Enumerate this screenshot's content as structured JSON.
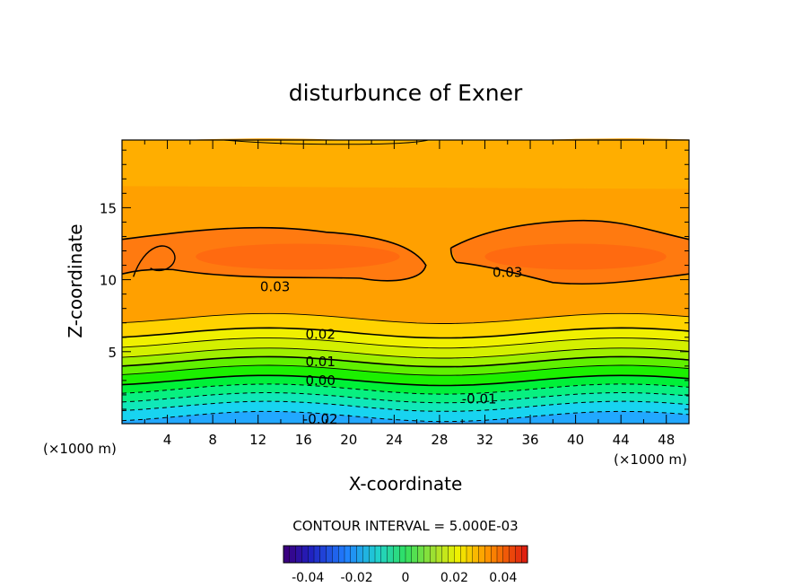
{
  "chart_data": {
    "type": "heatmap",
    "title": "disturbunce of Exner",
    "xlabel": "X-coordinate",
    "ylabel": "Z-coordinate",
    "x_unit_left": "(×1000 m)",
    "x_unit_right": "(×1000 m)",
    "xlim": [
      0,
      50
    ],
    "ylim": [
      0,
      19.7
    ],
    "x_ticks": [
      "4",
      "8",
      "12",
      "16",
      "20",
      "24",
      "28",
      "32",
      "36",
      "40",
      "44",
      "48"
    ],
    "y_ticks": [
      "5",
      "10",
      "15"
    ],
    "contour_interval_text": "CONTOUR INTERVAL = 5.000E-03",
    "colorbar": {
      "ticks": [
        "-0.04",
        "-0.02",
        "0",
        "0.02",
        "0.04"
      ],
      "range": [
        -0.05,
        0.05
      ]
    },
    "contour_labels": [
      {
        "text": "0.03",
        "x": 13.5,
        "y": 9.5
      },
      {
        "text": "0.03",
        "x": 34,
        "y": 10.5
      },
      {
        "text": "0.02",
        "x": 17.5,
        "y": 6.2
      },
      {
        "text": "0.01",
        "x": 17.5,
        "y": 4.3
      },
      {
        "text": "0.00",
        "x": 17.5,
        "y": 3.0
      },
      {
        "text": "-0.01",
        "x": 31.5,
        "y": 1.7
      },
      {
        "text": "-0.02",
        "x": 17.5,
        "y": 0.3
      }
    ],
    "bands": [
      {
        "z_top": 0.5,
        "color": "#22a8ff"
      },
      {
        "z_top": 1.2,
        "color": "#18d4f0"
      },
      {
        "z_top": 1.8,
        "color": "#10e8b8"
      },
      {
        "z_top": 2.4,
        "color": "#08f080"
      },
      {
        "z_top": 3.0,
        "color": "#00f038"
      },
      {
        "z_top": 3.7,
        "color": "#1cf000"
      },
      {
        "z_top": 4.3,
        "color": "#60f000"
      },
      {
        "z_top": 4.9,
        "color": "#a0f000"
      },
      {
        "z_top": 5.6,
        "color": "#d4f000"
      },
      {
        "z_top": 6.3,
        "color": "#f0f000"
      },
      {
        "z_top": 7.3,
        "color": "#ffd200"
      },
      {
        "z_top": 19.7,
        "color": "#ffa000"
      }
    ]
  }
}
